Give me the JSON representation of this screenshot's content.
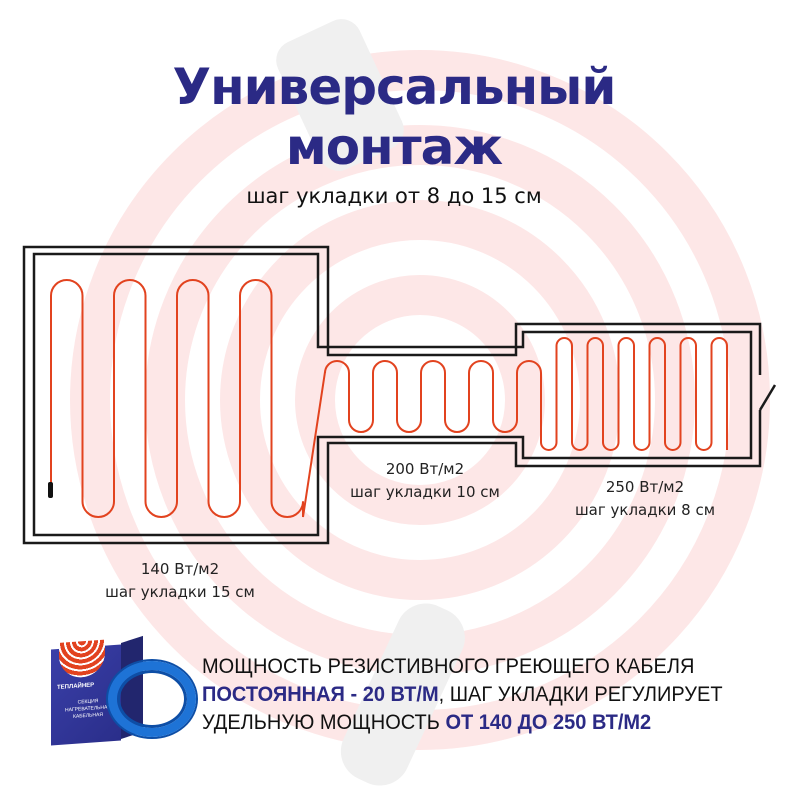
{
  "title": {
    "line1": "Универсальный",
    "line2": "монтаж"
  },
  "subtitle": "шаг укладки от 8 до 15 см",
  "zones": [
    {
      "power": "140 Вт/м2",
      "step": "шаг укладки 15 см"
    },
    {
      "power": "200 Вт/м2",
      "step": "шаг укладки 10 см"
    },
    {
      "power": "250 Вт/м2",
      "step": "шаг укладки 8 см"
    }
  ],
  "info": {
    "line1": "МОЩНОСТЬ РЕЗИСТИВНОГО ГРЕЮЩЕГО КАБЕЛЯ",
    "line2_hl": "ПОСТОЯННАЯ - 20 ВТ/М",
    "line2_rest": ", ШАГ УКЛАДКИ РЕГУЛИРУЕТ",
    "line3_rest": "УДЕЛЬНУЮ МОЩНОСТЬ ",
    "line3_hl": "ОТ 140 ДО 250 ВТ/М2"
  },
  "product": {
    "brand": "ТЕПЛАЙНЕР",
    "label": "СЕКЦИЯ НАГРЕВАТЕЛЬНАЯ КАБЕЛЬНАЯ"
  },
  "colors": {
    "accent": "#2b2a85",
    "cable": "#e2431f",
    "wall": "#1a1a1a",
    "watermark_rings": "#fbe3e3"
  }
}
